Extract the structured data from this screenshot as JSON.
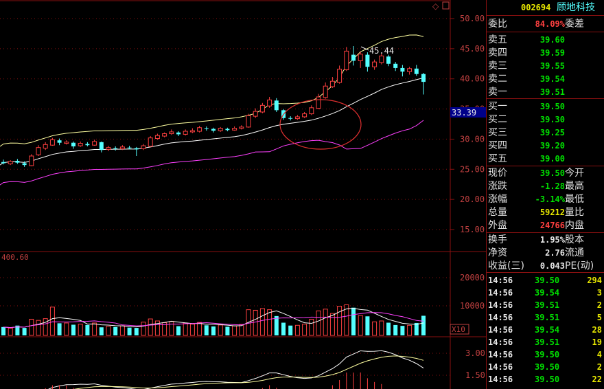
{
  "header": {
    "code": "002694",
    "name": "顾地科技"
  },
  "colors": {
    "up": "#ff4040",
    "down": "#54ffff",
    "ma_upper": "#ffffa0",
    "ma_mid": "#ffffff",
    "ma_low": "#ff40ff",
    "grid": "#8a1010",
    "axis_text": "#c04040"
  },
  "price_axis": {
    "ticks": [
      "50.00",
      "45.00",
      "40.00",
      "35.00",
      "30.00",
      "25.00",
      "20.00",
      "15.00"
    ],
    "current_tag": "33.39",
    "peak_label": "45.44"
  },
  "volume_axis": {
    "label": "400.60",
    "ticks": [
      "20000",
      "10000"
    ],
    "multiplier": "X10"
  },
  "indicator_axis": {
    "ticks": [
      "3.00",
      "1.50"
    ]
  },
  "quote": {
    "webi_label": "委比",
    "webi_value": "84.09%",
    "weicha_label": "委差",
    "sell": [
      {
        "label": "卖五",
        "price": "39.60"
      },
      {
        "label": "卖四",
        "price": "39.59"
      },
      {
        "label": "卖三",
        "price": "39.55"
      },
      {
        "label": "卖二",
        "price": "39.54"
      },
      {
        "label": "卖一",
        "price": "39.51"
      }
    ],
    "buy": [
      {
        "label": "买一",
        "price": "39.50"
      },
      {
        "label": "买二",
        "price": "39.30"
      },
      {
        "label": "买三",
        "price": "39.25"
      },
      {
        "label": "买四",
        "price": "39.20"
      },
      {
        "label": "买五",
        "price": "39.00"
      }
    ],
    "stats1": [
      {
        "k": "现价",
        "v": "39.50",
        "k2": "今开"
      },
      {
        "k": "涨跌",
        "v": "-1.28",
        "k2": "最高"
      },
      {
        "k": "涨幅",
        "v": "-3.14%",
        "k2": "最低"
      },
      {
        "k": "总量",
        "v": "59212",
        "k2": "量比"
      },
      {
        "k": "外盘",
        "v": "24766",
        "k2": "内盘"
      }
    ],
    "stats2": [
      {
        "k": "换手",
        "v": "1.95%",
        "k2": "股本"
      },
      {
        "k": "净资",
        "v": "2.76",
        "k2": "流通"
      },
      {
        "k": "收益(三)",
        "v": "0.043",
        "k2": "PE(动)"
      }
    ]
  },
  "ticks": [
    {
      "time": "14:56",
      "price": "39.50",
      "vol": "294"
    },
    {
      "time": "14:56",
      "price": "39.54",
      "vol": "3"
    },
    {
      "time": "14:56",
      "price": "39.51",
      "vol": "2"
    },
    {
      "time": "14:56",
      "price": "39.51",
      "vol": "5"
    },
    {
      "time": "14:56",
      "price": "39.54",
      "vol": "28"
    },
    {
      "time": "14:56",
      "price": "39.51",
      "vol": "19"
    },
    {
      "time": "14:56",
      "price": "39.50",
      "vol": "4"
    },
    {
      "time": "14:56",
      "price": "39.50",
      "vol": "2"
    },
    {
      "time": "14:56",
      "price": "39.50",
      "vol": "22"
    }
  ],
  "chart_data": {
    "type": "candlestick",
    "ylim": [
      12,
      52
    ],
    "candles": [
      [
        26.2,
        26.0,
        26.6,
        25.8
      ],
      [
        25.9,
        26.3,
        26.5,
        25.7
      ],
      [
        26.4,
        26.1,
        26.7,
        25.9
      ],
      [
        26.0,
        25.7,
        26.3,
        25.4
      ],
      [
        25.6,
        27.2,
        27.5,
        25.5
      ],
      [
        27.4,
        28.6,
        29.0,
        27.2
      ],
      [
        28.5,
        29.1,
        29.5,
        28.2
      ],
      [
        29.0,
        29.9,
        30.2,
        28.9
      ],
      [
        29.8,
        29.4,
        30.1,
        29.0
      ],
      [
        29.3,
        29.5,
        29.8,
        29.1
      ],
      [
        29.4,
        28.8,
        29.6,
        28.4
      ],
      [
        28.9,
        29.3,
        29.6,
        28.7
      ],
      [
        29.2,
        29.0,
        29.5,
        28.8
      ],
      [
        29.0,
        29.6,
        29.9,
        28.9
      ],
      [
        29.5,
        28.2,
        29.6,
        27.8
      ],
      [
        28.3,
        28.6,
        28.9,
        28.0
      ],
      [
        28.5,
        28.4,
        28.8,
        28.1
      ],
      [
        28.4,
        28.7,
        29.0,
        28.2
      ],
      [
        28.6,
        28.5,
        28.9,
        28.3
      ],
      [
        28.5,
        28.3,
        28.7,
        27.2
      ],
      [
        28.4,
        28.9,
        29.2,
        28.2
      ],
      [
        28.8,
        30.2,
        30.5,
        28.7
      ],
      [
        30.1,
        30.6,
        30.9,
        29.9
      ],
      [
        30.5,
        30.9,
        31.1,
        30.3
      ],
      [
        30.9,
        31.2,
        31.6,
        30.7
      ],
      [
        31.1,
        30.8,
        31.3,
        30.5
      ],
      [
        30.8,
        31.3,
        31.6,
        30.6
      ],
      [
        31.2,
        31.4,
        31.8,
        31.0
      ],
      [
        31.3,
        31.9,
        32.2,
        31.1
      ],
      [
        31.8,
        31.7,
        32.1,
        31.4
      ],
      [
        31.7,
        31.4,
        31.9,
        31.1
      ],
      [
        31.4,
        31.8,
        32.0,
        31.2
      ],
      [
        31.7,
        31.5,
        31.9,
        31.3
      ],
      [
        31.5,
        31.8,
        32.1,
        31.4
      ],
      [
        31.8,
        32.0,
        32.3,
        31.6
      ],
      [
        32.0,
        33.9,
        34.2,
        31.9
      ],
      [
        33.8,
        34.6,
        35.1,
        33.5
      ],
      [
        34.5,
        35.6,
        36.0,
        34.3
      ],
      [
        35.5,
        36.5,
        37.0,
        35.2
      ],
      [
        36.4,
        34.8,
        36.8,
        34.5
      ],
      [
        34.8,
        33.5,
        35.0,
        33.2
      ],
      [
        33.5,
        33.4,
        33.8,
        33.1
      ],
      [
        33.4,
        33.7,
        34.0,
        33.2
      ],
      [
        33.7,
        34.2,
        34.5,
        33.5
      ],
      [
        34.2,
        35.2,
        35.6,
        34.0
      ],
      [
        35.1,
        37.0,
        37.5,
        35.0
      ],
      [
        36.9,
        38.8,
        39.4,
        36.7
      ],
      [
        38.7,
        39.6,
        40.3,
        38.5
      ],
      [
        39.4,
        41.6,
        42.2,
        39.2
      ],
      [
        41.5,
        44.6,
        45.3,
        41.3
      ],
      [
        44.0,
        43.0,
        45.44,
        42.2
      ],
      [
        43.0,
        44.1,
        44.5,
        41.8
      ],
      [
        44.0,
        42.0,
        44.4,
        41.2
      ],
      [
        42.0,
        42.8,
        43.2,
        41.5
      ],
      [
        42.7,
        43.8,
        44.2,
        42.4
      ],
      [
        43.7,
        42.5,
        44.0,
        42.1
      ],
      [
        42.5,
        41.8,
        42.8,
        41.3
      ],
      [
        41.8,
        41.2,
        42.3,
        40.4
      ],
      [
        41.2,
        41.7,
        42.0,
        40.7
      ],
      [
        41.7,
        40.8,
        42.3,
        40.5
      ],
      [
        40.8,
        39.5,
        41.0,
        37.4
      ]
    ],
    "volumes": [
      2900,
      2500,
      3400,
      2600,
      5600,
      5200,
      5800,
      9800,
      4200,
      4300,
      3700,
      3900,
      3600,
      4300,
      2800,
      3200,
      2900,
      3300,
      2700,
      2600,
      4600,
      5700,
      5000,
      4400,
      4800,
      3200,
      4300,
      3900,
      4500,
      3500,
      3100,
      3600,
      3000,
      3300,
      3800,
      8900,
      8700,
      9300,
      8900,
      6700,
      4400,
      3400,
      3500,
      3900,
      5600,
      8500,
      9100,
      7600,
      10100,
      10600,
      9600,
      6900,
      6600,
      4700,
      5000,
      4400,
      3600,
      3300,
      3500,
      4300,
      6800
    ]
  }
}
